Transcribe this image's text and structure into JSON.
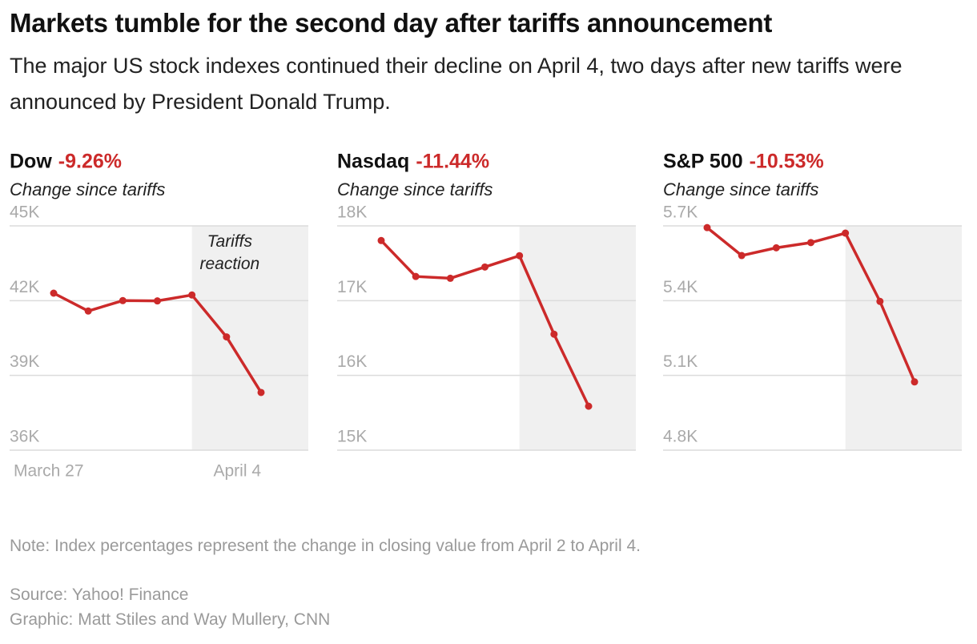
{
  "title": "Markets tumble for the second day after tariffs announcement",
  "subtitle": "The major US stock indexes continued their decline on April 4, two days after new tariffs were announced by President Donald Trump.",
  "chart_data": [
    {
      "type": "line",
      "title": "Dow",
      "change_label": "-9.26%",
      "subtitle": "Change since tariffs",
      "categories": [
        "March 27",
        null,
        null,
        null,
        null,
        null,
        "April 4"
      ],
      "values": [
        42300,
        41584,
        42002,
        41990,
        42226,
        40545,
        38315
      ],
      "color": "#cc2a2a",
      "annotation": "Tariffs reaction",
      "ylim": [
        36000,
        45000
      ],
      "yticks": [
        {
          "value": 36000,
          "label": "36K"
        },
        {
          "value": 39000,
          "label": "39K"
        },
        {
          "value": 42000,
          "label": "42K"
        },
        {
          "value": 45000,
          "label": "45K"
        }
      ],
      "grid": true
    },
    {
      "type": "line",
      "title": "Nasdaq",
      "change_label": "-11.44%",
      "subtitle": "Change since tariffs",
      "values": [
        17804,
        17323,
        17299,
        17450,
        17601,
        16551,
        15588
      ],
      "color": "#cc2a2a",
      "ylim": [
        15000,
        18000
      ],
      "yticks": [
        {
          "value": 15000,
          "label": "15K"
        },
        {
          "value": 16000,
          "label": "16K"
        },
        {
          "value": 17000,
          "label": "17K"
        },
        {
          "value": 18000,
          "label": "18K"
        }
      ],
      "grid": true
    },
    {
      "type": "line",
      "title": "S&P 500",
      "change_label": "-10.53%",
      "subtitle": "Change since tariffs",
      "values": [
        5693,
        5581,
        5612,
        5633,
        5671,
        5397,
        5074
      ],
      "color": "#cc2a2a",
      "ylim": [
        4800,
        5700
      ],
      "yticks": [
        {
          "value": 4800,
          "label": "4.8K"
        },
        {
          "value": 5100,
          "label": "5.1K"
        },
        {
          "value": 5400,
          "label": "5.4K"
        },
        {
          "value": 5700,
          "label": "5.7K"
        }
      ],
      "grid": true
    }
  ],
  "note": "Note: Index percentages represent the change in closing value from April 2 to April 4.",
  "source": "Source: Yahoo! Finance",
  "credit": "Graphic: Matt Stiles and Way Mullery, CNN"
}
